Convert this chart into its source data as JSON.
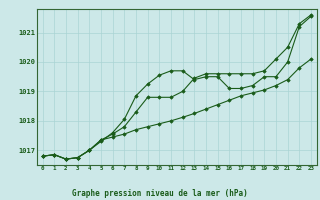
{
  "title": "Graphe pression niveau de la mer (hPa)",
  "bg_color": "#cce8e8",
  "grid_color": "#aad4d4",
  "line_color": "#1a5c1a",
  "border_color": "#336633",
  "x_labels": [
    "0",
    "1",
    "2",
    "3",
    "4",
    "5",
    "6",
    "7",
    "8",
    "9",
    "10",
    "11",
    "12",
    "13",
    "14",
    "15",
    "16",
    "17",
    "18",
    "19",
    "20",
    "21",
    "22",
    "23"
  ],
  "ylim": [
    1016.5,
    1021.8
  ],
  "yticks": [
    1017,
    1018,
    1019,
    1020,
    1021
  ],
  "series1": [
    1016.8,
    1016.85,
    1016.7,
    1016.75,
    1017.0,
    1017.3,
    1017.6,
    1018.05,
    1018.85,
    1019.25,
    1019.55,
    1019.7,
    1019.7,
    1019.4,
    1019.5,
    1019.5,
    1019.1,
    1019.1,
    1019.2,
    1019.5,
    1019.5,
    1020.0,
    1021.2,
    1021.55
  ],
  "series2": [
    1016.8,
    1016.85,
    1016.7,
    1016.75,
    1017.0,
    1017.35,
    1017.55,
    1017.8,
    1018.3,
    1018.8,
    1018.8,
    1018.8,
    1019.0,
    1019.45,
    1019.6,
    1019.6,
    1019.6,
    1019.6,
    1019.6,
    1019.7,
    1020.1,
    1020.5,
    1021.3,
    1021.6
  ],
  "series3": [
    1016.8,
    1016.85,
    1016.7,
    1016.75,
    1017.0,
    1017.35,
    1017.45,
    1017.55,
    1017.7,
    1017.8,
    1017.9,
    1018.0,
    1018.12,
    1018.25,
    1018.4,
    1018.55,
    1018.7,
    1018.85,
    1018.95,
    1019.05,
    1019.2,
    1019.4,
    1019.8,
    1020.1
  ]
}
